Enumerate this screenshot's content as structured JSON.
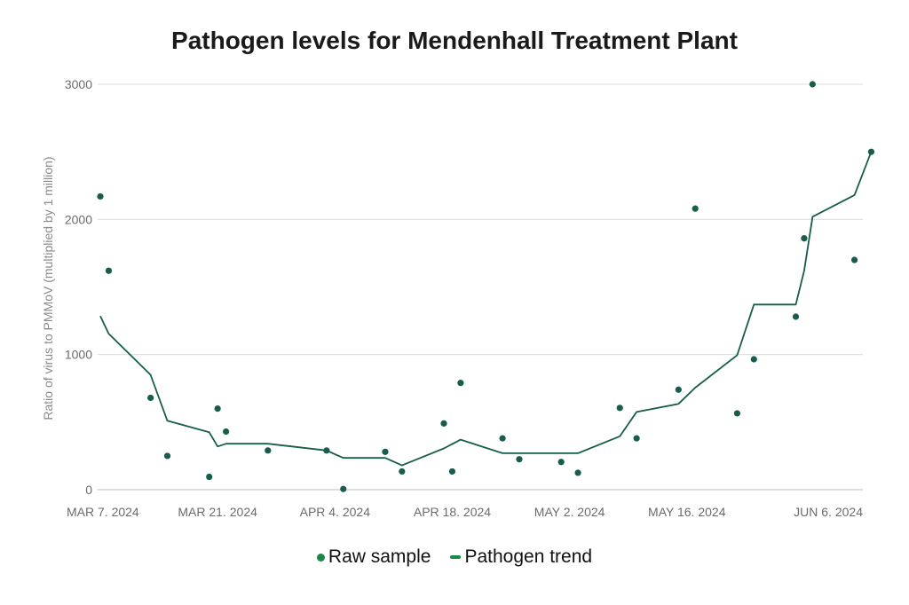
{
  "chart_data": {
    "type": "scatter+line",
    "title": "Pathogen levels for Mendenhall Treatment Plant",
    "xlabel": "",
    "ylabel": "Ratio of virus to PMMoV (multiplied by 1 million)",
    "x_type": "date",
    "xlim": [
      "2024-03-07",
      "2024-06-06"
    ],
    "ylim": [
      0,
      3000
    ],
    "y_ticks": [
      0,
      1000,
      2000,
      3000
    ],
    "y_tick_labels": [
      "0",
      "1000",
      "2000",
      "3000"
    ],
    "x_ticks": [
      "2024-03-07",
      "2024-03-21",
      "2024-04-04",
      "2024-04-18",
      "2024-05-02",
      "2024-05-16",
      "2024-06-06"
    ],
    "x_tick_labels": [
      "MAR 7. 2024",
      "MAR 21. 2024",
      "APR 4. 2024",
      "APR 18. 2024",
      "MAY 2. 2024",
      "MAY 16. 2024",
      "JUN 6. 2024"
    ],
    "grid": true,
    "legend_position": "bottom-center",
    "series": [
      {
        "name": "Raw sample",
        "kind": "scatter",
        "color": "#175c4c",
        "points": [
          {
            "x": "2024-03-07",
            "y": 2170
          },
          {
            "x": "2024-03-08",
            "y": 1620
          },
          {
            "x": "2024-03-13",
            "y": 680
          },
          {
            "x": "2024-03-15",
            "y": 250
          },
          {
            "x": "2024-03-20",
            "y": 95
          },
          {
            "x": "2024-03-21",
            "y": 600
          },
          {
            "x": "2024-03-22",
            "y": 430
          },
          {
            "x": "2024-03-27",
            "y": 290
          },
          {
            "x": "2024-04-03",
            "y": 290
          },
          {
            "x": "2024-04-05",
            "y": 5
          },
          {
            "x": "2024-04-10",
            "y": 280
          },
          {
            "x": "2024-04-12",
            "y": 135
          },
          {
            "x": "2024-04-17",
            "y": 490
          },
          {
            "x": "2024-04-18",
            "y": 135
          },
          {
            "x": "2024-04-19",
            "y": 790
          },
          {
            "x": "2024-04-24",
            "y": 380
          },
          {
            "x": "2024-04-26",
            "y": 225
          },
          {
            "x": "2024-05-01",
            "y": 205
          },
          {
            "x": "2024-05-03",
            "y": 125
          },
          {
            "x": "2024-05-08",
            "y": 605
          },
          {
            "x": "2024-05-10",
            "y": 380
          },
          {
            "x": "2024-05-15",
            "y": 740
          },
          {
            "x": "2024-05-17",
            "y": 2080
          },
          {
            "x": "2024-05-22",
            "y": 565
          },
          {
            "x": "2024-05-24",
            "y": 965
          },
          {
            "x": "2024-05-29",
            "y": 1280
          },
          {
            "x": "2024-05-30",
            "y": 1860
          },
          {
            "x": "2024-05-31",
            "y": 3000
          },
          {
            "x": "2024-06-05",
            "y": 1700
          },
          {
            "x": "2024-06-07",
            "y": 2500
          }
        ]
      },
      {
        "name": "Pathogen trend",
        "kind": "line",
        "color": "#175c4c",
        "points": [
          {
            "x": "2024-03-07",
            "y": 1285
          },
          {
            "x": "2024-03-08",
            "y": 1155
          },
          {
            "x": "2024-03-13",
            "y": 850
          },
          {
            "x": "2024-03-15",
            "y": 510
          },
          {
            "x": "2024-03-20",
            "y": 425
          },
          {
            "x": "2024-03-21",
            "y": 320
          },
          {
            "x": "2024-03-22",
            "y": 340
          },
          {
            "x": "2024-03-27",
            "y": 340
          },
          {
            "x": "2024-04-03",
            "y": 290
          },
          {
            "x": "2024-04-05",
            "y": 235
          },
          {
            "x": "2024-04-10",
            "y": 235
          },
          {
            "x": "2024-04-12",
            "y": 180
          },
          {
            "x": "2024-04-17",
            "y": 305
          },
          {
            "x": "2024-04-19",
            "y": 370
          },
          {
            "x": "2024-04-24",
            "y": 270
          },
          {
            "x": "2024-05-03",
            "y": 270
          },
          {
            "x": "2024-05-08",
            "y": 395
          },
          {
            "x": "2024-05-10",
            "y": 575
          },
          {
            "x": "2024-05-15",
            "y": 635
          },
          {
            "x": "2024-05-17",
            "y": 755
          },
          {
            "x": "2024-05-22",
            "y": 995
          },
          {
            "x": "2024-05-24",
            "y": 1370
          },
          {
            "x": "2024-05-29",
            "y": 1370
          },
          {
            "x": "2024-05-30",
            "y": 1620
          },
          {
            "x": "2024-05-31",
            "y": 2020
          },
          {
            "x": "2024-06-05",
            "y": 2180
          },
          {
            "x": "2024-06-07",
            "y": 2500
          }
        ]
      }
    ]
  },
  "legend": {
    "items": [
      {
        "label": "Raw sample",
        "color": "#178a48",
        "marker": "dot"
      },
      {
        "label": "Pathogen trend",
        "color": "#178a48",
        "marker": "line"
      }
    ]
  }
}
